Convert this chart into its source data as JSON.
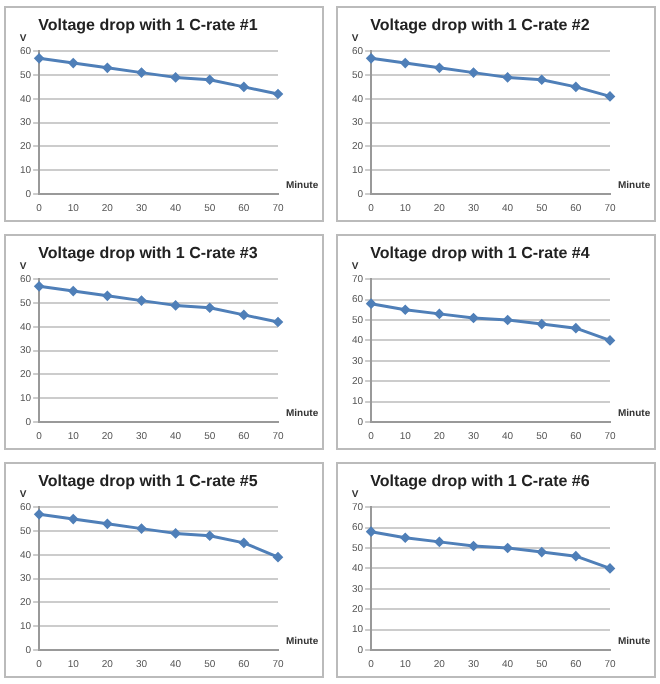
{
  "chart_data": [
    {
      "type": "line",
      "title": "Voltage drop with 1 C-rate #1",
      "xlabel": "Minute",
      "ylabel": "V",
      "categories": [
        "0",
        "10",
        "20",
        "30",
        "40",
        "50",
        "60",
        "70"
      ],
      "series": [
        {
          "color": "#4f7fb8",
          "values": [
            57,
            55,
            53,
            51,
            49,
            48,
            45,
            42
          ]
        }
      ],
      "ylim": [
        0,
        60
      ],
      "yticks": [
        0,
        10,
        20,
        30,
        40,
        50,
        60
      ],
      "grid": "y",
      "marker": "diamond"
    },
    {
      "type": "line",
      "title": "Voltage drop with 1 C-rate #2",
      "xlabel": "Minute",
      "ylabel": "V",
      "categories": [
        "0",
        "10",
        "20",
        "30",
        "40",
        "50",
        "60",
        "70"
      ],
      "series": [
        {
          "color": "#4f7fb8",
          "values": [
            57,
            55,
            53,
            51,
            49,
            48,
            45,
            41
          ]
        }
      ],
      "ylim": [
        0,
        60
      ],
      "yticks": [
        0,
        10,
        20,
        30,
        40,
        50,
        60
      ],
      "grid": "y",
      "marker": "diamond"
    },
    {
      "type": "line",
      "title": "Voltage drop with 1 C-rate #3",
      "xlabel": "Minute",
      "ylabel": "V",
      "categories": [
        "0",
        "10",
        "20",
        "30",
        "40",
        "50",
        "60",
        "70"
      ],
      "series": [
        {
          "color": "#4f7fb8",
          "values": [
            57,
            55,
            53,
            51,
            49,
            48,
            45,
            42
          ]
        }
      ],
      "ylim": [
        0,
        60
      ],
      "yticks": [
        0,
        10,
        20,
        30,
        40,
        50,
        60
      ],
      "grid": "y",
      "marker": "diamond"
    },
    {
      "type": "line",
      "title": "Voltage drop with 1 C-rate #4",
      "xlabel": "Minute",
      "ylabel": "V",
      "categories": [
        "0",
        "10",
        "20",
        "30",
        "40",
        "50",
        "60",
        "70"
      ],
      "series": [
        {
          "color": "#4f7fb8",
          "values": [
            58,
            55,
            53,
            51,
            50,
            48,
            46,
            40
          ]
        }
      ],
      "ylim": [
        0,
        70
      ],
      "yticks": [
        0,
        10,
        20,
        30,
        40,
        50,
        60,
        70
      ],
      "grid": "y",
      "marker": "diamond"
    },
    {
      "type": "line",
      "title": "Voltage drop with 1 C-rate #5",
      "xlabel": "Minute",
      "ylabel": "V",
      "categories": [
        "0",
        "10",
        "20",
        "30",
        "40",
        "50",
        "60",
        "70"
      ],
      "series": [
        {
          "color": "#4f7fb8",
          "values": [
            57,
            55,
            53,
            51,
            49,
            48,
            45,
            39
          ]
        }
      ],
      "ylim": [
        0,
        60
      ],
      "yticks": [
        0,
        10,
        20,
        30,
        40,
        50,
        60
      ],
      "grid": "y",
      "marker": "diamond"
    },
    {
      "type": "line",
      "title": "Voltage drop with 1 C-rate #6",
      "xlabel": "Minute",
      "ylabel": "V",
      "categories": [
        "0",
        "10",
        "20",
        "30",
        "40",
        "50",
        "60",
        "70"
      ],
      "series": [
        {
          "color": "#4f7fb8",
          "values": [
            58,
            55,
            53,
            51,
            50,
            48,
            46,
            40
          ]
        }
      ],
      "ylim": [
        0,
        70
      ],
      "yticks": [
        0,
        10,
        20,
        30,
        40,
        50,
        60,
        70
      ],
      "grid": "y",
      "marker": "diamond"
    }
  ]
}
